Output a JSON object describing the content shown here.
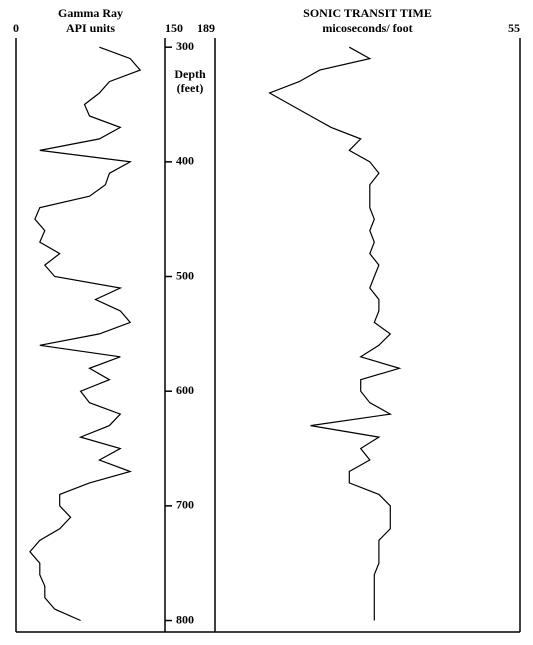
{
  "chart_data": {
    "type": "well-log",
    "y_label": "Depth",
    "y_unit": "(feet)",
    "ylim": [
      292,
      810
    ],
    "yticks": [
      300,
      400,
      500,
      600,
      700,
      800
    ],
    "y": [
      300,
      310,
      320,
      330,
      340,
      350,
      360,
      370,
      380,
      390,
      400,
      410,
      420,
      430,
      440,
      450,
      460,
      470,
      480,
      490,
      500,
      510,
      520,
      530,
      540,
      550,
      560,
      570,
      580,
      590,
      600,
      610,
      620,
      630,
      640,
      650,
      660,
      670,
      680,
      690,
      700,
      710,
      720,
      730,
      740,
      750,
      760,
      770,
      780,
      790,
      800
    ],
    "tracks": [
      {
        "title": "Gamma Ray",
        "subtitle": "API units",
        "xlim": [
          0,
          150
        ],
        "xticks": [
          0,
          150
        ],
        "color": "#000000",
        "values": [
          84,
          115,
          125,
          94,
          84,
          69,
          74,
          105,
          84,
          24,
          115,
          94,
          90,
          74,
          24,
          19,
          29,
          24,
          44,
          29,
          39,
          105,
          80,
          105,
          115,
          84,
          24,
          105,
          74,
          94,
          65,
          74,
          105,
          94,
          65,
          105,
          84,
          115,
          74,
          44,
          44,
          55,
          44,
          24,
          14,
          24,
          24,
          29,
          29,
          39,
          65
        ]
      },
      {
        "title": "SONIC TRANSIT TIME",
        "subtitle": "micoseconds/ foot",
        "xlim": [
          189,
          55
        ],
        "xticks": [
          189,
          55
        ],
        "color": "#000000",
        "values": [
          130,
          121,
          143,
          152,
          165,
          156,
          147,
          138,
          125,
          130,
          121,
          117,
          121,
          121,
          121,
          119,
          121,
          119,
          121,
          117,
          119,
          121,
          117,
          117,
          119,
          112,
          117,
          125,
          108,
          125,
          125,
          121,
          112,
          147,
          117,
          125,
          121,
          130,
          130,
          117,
          112,
          112,
          112,
          117,
          117,
          117,
          119,
          119,
          119,
          119,
          119
        ]
      }
    ]
  }
}
